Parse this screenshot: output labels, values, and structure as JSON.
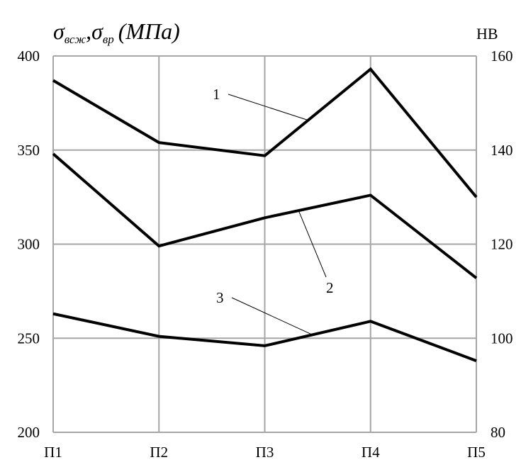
{
  "chart_data": {
    "type": "line",
    "ylabel_left_main": "σ",
    "ylabel_left_sub1": "всж",
    "ylabel_left_sep": ",",
    "ylabel_left_sub2": "вр",
    "ylabel_left_unit": "(МПа)",
    "ylabel_right": "HB",
    "categories": [
      "П1",
      "П2",
      "П3",
      "П4",
      "П5"
    ],
    "ylim_left": [
      200,
      400
    ],
    "ylim_right": [
      80,
      160
    ],
    "yticks_left": [
      "200",
      "250",
      "300",
      "350",
      "400"
    ],
    "yticks_right": [
      "80",
      "100",
      "120",
      "140",
      "160"
    ],
    "grid": true,
    "series": [
      {
        "name": "1",
        "values": [
          387,
          354,
          347,
          393,
          325
        ]
      },
      {
        "name": "2",
        "values": [
          348,
          299,
          314,
          326,
          282
        ]
      },
      {
        "name": "3",
        "values": [
          263,
          251,
          246,
          259,
          238
        ]
      }
    ]
  }
}
